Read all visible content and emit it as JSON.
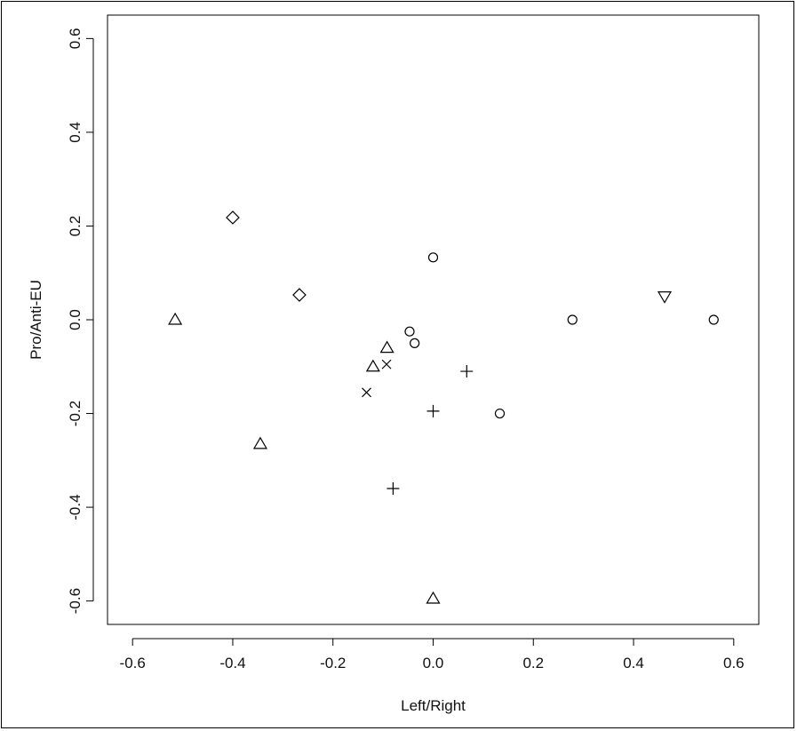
{
  "chart_data": {
    "type": "scatter",
    "title": "",
    "xlabel": "Left/Right",
    "ylabel": "Pro/Anti-EU",
    "xlim": [
      -0.65,
      0.65
    ],
    "ylim": [
      -0.65,
      0.65
    ],
    "x_ticks": [
      -0.6,
      -0.4,
      -0.2,
      0.0,
      0.2,
      0.4,
      0.6
    ],
    "y_ticks": [
      -0.6,
      -0.4,
      -0.2,
      0.0,
      0.2,
      0.4,
      0.6
    ],
    "x_tick_labels": [
      "-0.6",
      "-0.4",
      "-0.2",
      "0.0",
      "0.2",
      "0.4",
      "0.6"
    ],
    "y_tick_labels": [
      "-0.6",
      "-0.4",
      "-0.2",
      "0.0",
      "0.2",
      "0.4",
      "0.6"
    ],
    "grid": false,
    "legend": "none",
    "series": [
      {
        "marker": "circle",
        "points": [
          {
            "x": 0.0,
            "y": 0.133
          },
          {
            "x": -0.047,
            "y": -0.025
          },
          {
            "x": -0.037,
            "y": -0.05
          },
          {
            "x": 0.133,
            "y": -0.2
          },
          {
            "x": 0.278,
            "y": 0.0
          },
          {
            "x": 0.56,
            "y": 0.0
          }
        ]
      },
      {
        "marker": "triangle",
        "points": [
          {
            "x": -0.515,
            "y": 0.0
          },
          {
            "x": -0.092,
            "y": -0.06
          },
          {
            "x": -0.12,
            "y": -0.1
          },
          {
            "x": -0.345,
            "y": -0.265
          },
          {
            "x": 0.0,
            "y": -0.595
          }
        ]
      },
      {
        "marker": "diamond",
        "points": [
          {
            "x": -0.4,
            "y": 0.218
          },
          {
            "x": -0.267,
            "y": 0.053
          }
        ]
      },
      {
        "marker": "triangle-down",
        "points": [
          {
            "x": 0.462,
            "y": 0.05
          }
        ]
      },
      {
        "marker": "cross-x",
        "points": [
          {
            "x": -0.093,
            "y": -0.095
          },
          {
            "x": -0.133,
            "y": -0.155
          }
        ]
      },
      {
        "marker": "plus",
        "points": [
          {
            "x": 0.067,
            "y": -0.11
          },
          {
            "x": 0.0,
            "y": -0.195
          },
          {
            "x": -0.08,
            "y": -0.36
          }
        ]
      }
    ]
  }
}
